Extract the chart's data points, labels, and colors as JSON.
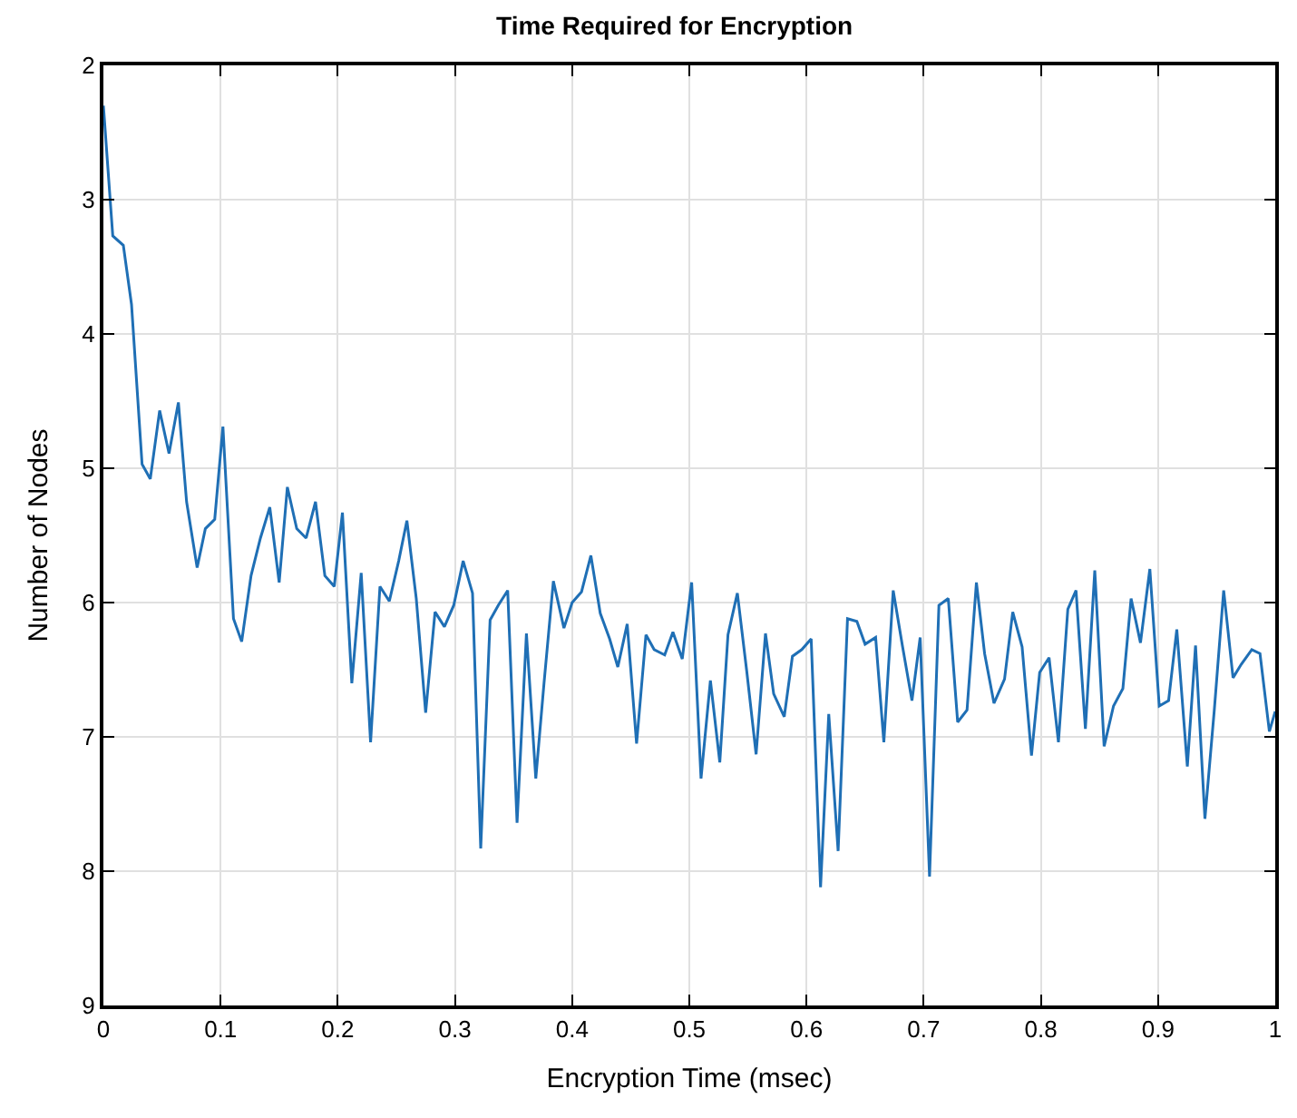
{
  "chart_data": {
    "type": "line",
    "title": "Time Required for Encryption",
    "xlabel": "Encryption Time (msec)",
    "ylabel": "Number of Nodes",
    "xlim": [
      0,
      1
    ],
    "xticks": [
      0,
      {
        "value": 0.1,
        "label": "0.1"
      },
      {
        "value": 0.2,
        "label": "0.2"
      },
      {
        "value": 0.3,
        "label": "0.3"
      },
      {
        "value": 0.4,
        "label": "0.4"
      },
      {
        "value": 0.5,
        "label": "0.5"
      },
      {
        "value": 0.6,
        "label": "0.6"
      },
      {
        "value": 0.7,
        "label": "0.7"
      },
      {
        "value": 0.8,
        "label": "0.8"
      },
      {
        "value": 0.9,
        "label": "0.9"
      },
      1
    ],
    "ylim": [
      9,
      2
    ],
    "yticks": [
      2,
      3,
      4,
      5,
      6,
      7,
      8,
      9
    ],
    "grid": true,
    "marker": "none",
    "line_style": "solid",
    "x": [
      0.0,
      0.008,
      0.017,
      0.024,
      0.033,
      0.04,
      0.048,
      0.056,
      0.064,
      0.071,
      0.08,
      0.087,
      0.095,
      0.102,
      0.111,
      0.118,
      0.126,
      0.134,
      0.142,
      0.15,
      0.157,
      0.165,
      0.173,
      0.181,
      0.189,
      0.197,
      0.204,
      0.212,
      0.22,
      0.228,
      0.236,
      0.244,
      0.252,
      0.259,
      0.267,
      0.275,
      0.283,
      0.291,
      0.299,
      0.307,
      0.315,
      0.322,
      0.33,
      0.337,
      0.345,
      0.353,
      0.361,
      0.369,
      0.376,
      0.384,
      0.393,
      0.4,
      0.408,
      0.416,
      0.424,
      0.432,
      0.439,
      0.447,
      0.455,
      0.463,
      0.47,
      0.479,
      0.486,
      0.494,
      0.502,
      0.51,
      0.518,
      0.526,
      0.533,
      0.541,
      0.549,
      0.557,
      0.565,
      0.572,
      0.581,
      0.588,
      0.596,
      0.604,
      0.612,
      0.619,
      0.627,
      0.635,
      0.643,
      0.65,
      0.659,
      0.666,
      0.674,
      0.682,
      0.69,
      0.697,
      0.705,
      0.713,
      0.721,
      0.729,
      0.737,
      0.745,
      0.752,
      0.76,
      0.769,
      0.776,
      0.784,
      0.792,
      0.799,
      0.807,
      0.815,
      0.823,
      0.83,
      0.838,
      0.846,
      0.854,
      0.862,
      0.87,
      0.877,
      0.885,
      0.893,
      0.901,
      0.909,
      0.916,
      0.925,
      0.932,
      0.94,
      0.948,
      0.956,
      0.964,
      0.971,
      0.98,
      0.987,
      0.995,
      1.0
    ],
    "series": [
      {
        "color": "#1f6fb5",
        "values": [
          2.3,
          3.27,
          3.34,
          3.78,
          4.97,
          5.08,
          4.57,
          4.89,
          4.51,
          5.25,
          5.74,
          5.45,
          5.38,
          4.69,
          6.12,
          6.29,
          5.8,
          5.52,
          5.29,
          5.85,
          5.14,
          5.45,
          5.52,
          5.25,
          5.8,
          5.88,
          5.33,
          6.6,
          5.78,
          7.04,
          5.88,
          5.99,
          5.69,
          5.39,
          5.97,
          6.82,
          6.07,
          6.18,
          6.02,
          5.69,
          5.93,
          7.83,
          6.13,
          6.02,
          5.91,
          7.64,
          6.23,
          7.31,
          6.6,
          5.84,
          6.19,
          6.0,
          5.92,
          5.65,
          6.08,
          6.27,
          6.48,
          6.16,
          7.05,
          6.24,
          6.35,
          6.39,
          6.22,
          6.42,
          5.85,
          7.31,
          6.58,
          7.19,
          6.24,
          5.93,
          6.51,
          7.13,
          6.23,
          6.68,
          6.85,
          6.4,
          6.35,
          6.27,
          8.12,
          6.83,
          7.85,
          6.12,
          6.14,
          6.31,
          6.26,
          7.04,
          5.91,
          6.33,
          6.73,
          6.26,
          8.04,
          6.02,
          5.97,
          6.89,
          6.8,
          5.85,
          6.38,
          6.75,
          6.57,
          6.07,
          6.33,
          7.14,
          6.52,
          6.41,
          7.04,
          6.05,
          5.91,
          6.94,
          5.76,
          7.07,
          6.77,
          6.64,
          5.97,
          6.3,
          5.75,
          6.77,
          6.73,
          6.2,
          7.22,
          6.32,
          7.61,
          6.8,
          5.91,
          6.56,
          6.46,
          6.35,
          6.38,
          6.96,
          6.81
        ]
      }
    ]
  }
}
